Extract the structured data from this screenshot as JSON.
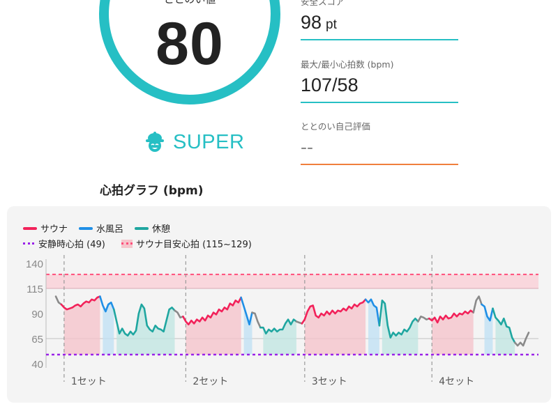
{
  "score": {
    "label": "ととのい値",
    "value": "80"
  },
  "rank": {
    "label": "SUPER",
    "icon": "sauna-hat-face-icon"
  },
  "stats": [
    {
      "label": "安全スコア",
      "value": "98",
      "unit": "pt",
      "line_color": "#26bfc4"
    },
    {
      "label": "最大/最小心拍数 (bpm)",
      "value": "107/58",
      "unit": "",
      "line_color": "#26bfc4"
    },
    {
      "label": "ととのい自己評価",
      "value": "--",
      "unit": "",
      "line_color": "#f07f3c"
    }
  ],
  "graph_title": "心拍グラフ (bpm)",
  "legend": {
    "sauna": "サウナ",
    "cold_bath": "水風呂",
    "rest": "休憩",
    "resting_hr": "安静時心拍 (49)",
    "sauna_target": "サウナ目安心拍 (115~129)"
  },
  "colors": {
    "sauna": "#f2225a",
    "cold_bath": "#1f8fe6",
    "rest": "#1fa6a0",
    "resting": "#9a22e8",
    "target": "#ff4f7b",
    "accent": "#26bfc4"
  },
  "chart_data": {
    "type": "line",
    "y_ticks": [
      140,
      115,
      90,
      65,
      40
    ],
    "ylim": [
      40,
      140
    ],
    "resting_hr": 49,
    "target_band": [
      115,
      129
    ],
    "sets": [
      "1セット",
      "2セット",
      "3セット",
      "4セット"
    ],
    "segments": [
      {
        "type": "transition",
        "values": [
          107,
          101,
          99
        ]
      },
      {
        "type": "sauna",
        "values": [
          96,
          94,
          95,
          96,
          98,
          99,
          97,
          100,
          102,
          101,
          104,
          103,
          106,
          107
        ]
      },
      {
        "type": "cold_bath",
        "values": [
          98,
          92,
          99,
          101,
          94
        ]
      },
      {
        "type": "rest",
        "values": [
          82,
          70,
          75,
          70,
          68,
          72,
          69,
          73,
          90,
          99,
          95,
          78,
          74,
          72,
          78,
          75,
          74,
          72,
          83,
          94,
          96,
          93
        ]
      },
      {
        "type": "transition",
        "values": [
          91,
          86,
          87
        ]
      },
      {
        "type": "sauna",
        "values": [
          82,
          79,
          83,
          80,
          84,
          82,
          86,
          83,
          88,
          86,
          91,
          89,
          94,
          92,
          96,
          94,
          100,
          98,
          103,
          101,
          106
        ]
      },
      {
        "type": "cold_bath",
        "values": [
          97,
          88,
          79,
          91
        ]
      },
      {
        "type": "transition",
        "values": [
          90,
          82,
          76
        ]
      },
      {
        "type": "rest",
        "values": [
          76,
          70,
          74,
          72,
          75,
          72,
          74,
          74,
          80,
          84,
          79,
          84,
          82
        ]
      },
      {
        "type": "transition",
        "values": [
          81,
          80
        ]
      },
      {
        "type": "sauna",
        "values": [
          84,
          92,
          97,
          98,
          88,
          86,
          90,
          88,
          92,
          89,
          93,
          90,
          93,
          92,
          95,
          93,
          97,
          95,
          99,
          97,
          100,
          101,
          104
        ]
      },
      {
        "type": "cold_bath",
        "values": [
          101,
          104,
          98,
          96,
          78
        ]
      },
      {
        "type": "rest",
        "values": [
          103,
          100,
          78,
          66,
          71,
          68,
          71,
          69,
          74,
          72,
          76,
          82,
          85,
          82
        ]
      },
      {
        "type": "transition",
        "values": [
          87,
          86,
          84,
          85
        ]
      },
      {
        "type": "sauna",
        "values": [
          83,
          86,
          81,
          87,
          84,
          88,
          85,
          86,
          90,
          87,
          90,
          89,
          92,
          90,
          93,
          91
        ]
      },
      {
        "type": "transition",
        "values": [
          103,
          107,
          99
        ]
      },
      {
        "type": "cold_bath",
        "values": [
          97,
          87,
          83,
          95
        ]
      },
      {
        "type": "rest",
        "values": [
          86,
          83,
          79,
          85,
          77,
          76,
          66,
          61
        ]
      },
      {
        "type": "transition",
        "values": [
          58,
          61,
          58,
          65,
          71
        ]
      }
    ]
  }
}
